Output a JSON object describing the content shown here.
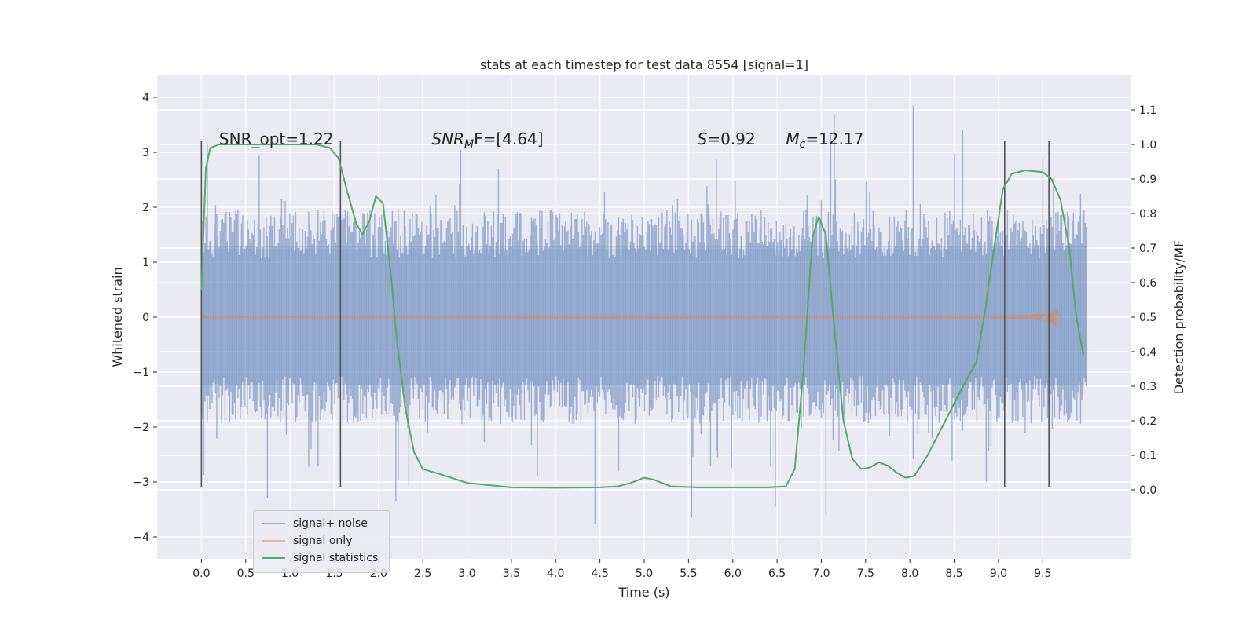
{
  "chart_data": {
    "type": "line",
    "title": "stats at each timestep for test data 8554 [signal=1]",
    "xlabel": "Time (s)",
    "ylabel_left": "Whitened strain",
    "ylabel_right": "Detection probability/MF",
    "xlim": [
      -0.5,
      10.5
    ],
    "ylim_left": [
      -4.4,
      4.4
    ],
    "ylim_right": [
      -0.2,
      1.2
    ],
    "x_ticks": [
      "0.0",
      "0.5",
      "1.0",
      "1.5",
      "2.0",
      "2.5",
      "3.0",
      "3.5",
      "4.0",
      "4.5",
      "5.0",
      "5.5",
      "6.0",
      "6.5",
      "7.0",
      "7.5",
      "8.0",
      "8.5",
      "9.0",
      "9.5"
    ],
    "y_left_ticks": [
      "4",
      "3",
      "2",
      "1",
      "0",
      "−1",
      "−2",
      "−3",
      "−4"
    ],
    "y_right_ticks": [
      "1.1",
      "1.0",
      "0.9",
      "0.8",
      "0.7",
      "0.6",
      "0.5",
      "0.4",
      "0.3",
      "0.2",
      "0.1",
      "0.0"
    ],
    "grid": true,
    "legend_position": "lower-left",
    "annotations": [
      {
        "text": "SNR_opt=1.22",
        "x": 0.2,
        "y": 3.2
      },
      {
        "text": "SNR",
        "sub": "M",
        "tail": "F=[4.64]",
        "italic": true,
        "x": 2.6,
        "y": 3.2
      },
      {
        "text": "S",
        "tail": "=0.92",
        "italic": true,
        "x": 5.6,
        "y": 3.2
      },
      {
        "text": "M",
        "sub": "c",
        "tail": "=12.17",
        "italic": true,
        "x": 6.6,
        "y": 3.2
      }
    ],
    "vlines": [
      {
        "x": 0.0,
        "y_range": [
          -3.1,
          3.2
        ]
      },
      {
        "x": 1.57,
        "y_range": [
          -3.1,
          3.2
        ]
      },
      {
        "x": 9.07,
        "y_range": [
          -3.1,
          3.2
        ]
      },
      {
        "x": 9.57,
        "y_range": [
          -3.1,
          3.2
        ]
      }
    ],
    "series": [
      {
        "name": "signal+ noise",
        "color": "#4c72b0",
        "axis": "left",
        "x_range": [
          0,
          10
        ],
        "envelope": {
          "typical_half_width": 1.95,
          "spike_max": 4.05,
          "spike_min": -3.95,
          "dense_band": [
            -1.25,
            1.3
          ]
        }
      },
      {
        "name": "signal only",
        "color": "#dd8452",
        "axis": "left",
        "x_range": [
          0,
          9.7
        ],
        "chirp_peak_amplitude": 0.25,
        "chirp_peak_time": 9.65
      },
      {
        "name": "signal statistics",
        "color": "#55a868",
        "axis": "right",
        "x": [
          0.0,
          0.05,
          0.1,
          0.2,
          0.3,
          0.5,
          1.0,
          1.3,
          1.45,
          1.55,
          1.65,
          1.75,
          1.82,
          1.9,
          1.97,
          2.05,
          2.15,
          2.2,
          2.3,
          2.4,
          2.5,
          2.7,
          3.0,
          3.5,
          4.0,
          4.5,
          4.7,
          4.85,
          5.0,
          5.1,
          5.3,
          5.6,
          6.0,
          6.4,
          6.6,
          6.7,
          6.8,
          6.9,
          6.97,
          7.05,
          7.15,
          7.25,
          7.35,
          7.45,
          7.55,
          7.65,
          7.75,
          7.85,
          7.95,
          8.05,
          8.2,
          8.4,
          8.6,
          8.75,
          8.85,
          8.95,
          9.05,
          9.15,
          9.3,
          9.5,
          9.6,
          9.7,
          9.8,
          9.88,
          9.96
        ],
        "y": [
          0.58,
          0.93,
          0.99,
          1.0,
          1.0,
          1.0,
          1.0,
          1.0,
          0.99,
          0.96,
          0.86,
          0.77,
          0.74,
          0.78,
          0.85,
          0.83,
          0.6,
          0.45,
          0.24,
          0.11,
          0.06,
          0.045,
          0.02,
          0.007,
          0.006,
          0.007,
          0.01,
          0.02,
          0.035,
          0.03,
          0.01,
          0.007,
          0.007,
          0.007,
          0.01,
          0.06,
          0.35,
          0.73,
          0.79,
          0.74,
          0.46,
          0.2,
          0.09,
          0.06,
          0.065,
          0.08,
          0.07,
          0.05,
          0.035,
          0.04,
          0.1,
          0.2,
          0.3,
          0.37,
          0.52,
          0.7,
          0.87,
          0.915,
          0.925,
          0.92,
          0.9,
          0.84,
          0.7,
          0.5,
          0.39
        ]
      }
    ]
  }
}
